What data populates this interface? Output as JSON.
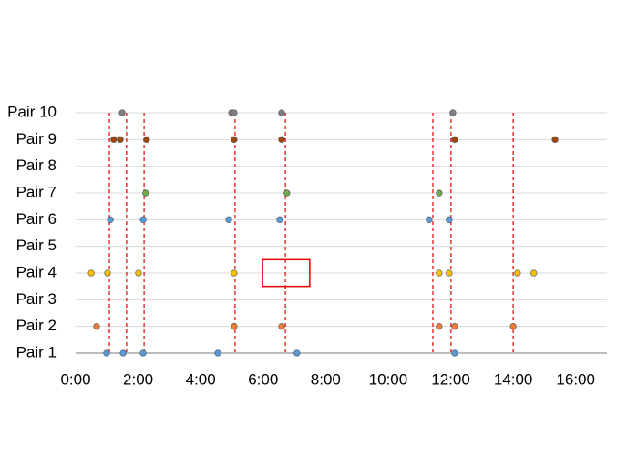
{
  "chart_data": {
    "type": "scatter",
    "xlim": [
      0,
      17
    ],
    "xticks": [
      {
        "value": 0,
        "label": "0:00"
      },
      {
        "value": 2,
        "label": "2:00"
      },
      {
        "value": 4,
        "label": "4:00"
      },
      {
        "value": 6,
        "label": "6:00"
      },
      {
        "value": 8,
        "label": "8:00"
      },
      {
        "value": 10,
        "label": "10:00"
      },
      {
        "value": 12,
        "label": "12:00"
      },
      {
        "value": 14,
        "label": "14:00"
      },
      {
        "value": 16,
        "label": "16:00"
      }
    ],
    "grid": true,
    "series": [
      {
        "name": "Pair 1",
        "color": "#5b9bd5",
        "x": [
          0.99,
          1.52,
          2.16,
          4.55,
          7.08,
          12.13
        ]
      },
      {
        "name": "Pair 2",
        "color": "#ed7d31",
        "x": [
          0.67,
          5.07,
          6.59,
          11.63,
          12.13,
          14.0
        ]
      },
      {
        "name": "Pair 3",
        "color": "#a5a5a5",
        "x": []
      },
      {
        "name": "Pair 4",
        "color": "#ffc000",
        "x": [
          0.5,
          1.02,
          2.01,
          5.07,
          11.63,
          11.95,
          14.14,
          14.66
        ]
      },
      {
        "name": "Pair 5",
        "color": "#4472c4",
        "x": []
      },
      {
        "name": "Pair 6",
        "color": "#5b9bd5",
        "x": [
          1.11,
          2.16,
          4.9,
          6.53,
          11.31,
          11.95
        ]
      },
      {
        "name": "Pair 7",
        "color": "#70ad47",
        "x": [
          2.24,
          6.76,
          11.63
        ]
      },
      {
        "name": "Pair 8",
        "color": "#264478",
        "x": []
      },
      {
        "name": "Pair 9",
        "color": "#9e480e",
        "x": [
          1.22,
          1.43,
          2.27,
          5.07,
          6.59,
          12.13,
          15.34
        ]
      },
      {
        "name": "Pair 10",
        "color": "#7f7f7f",
        "x": [
          1.49,
          4.99,
          5.07,
          6.59,
          12.07
        ]
      }
    ],
    "vlines": {
      "color": "#e00000",
      "x": [
        1.08,
        1.63,
        2.19,
        5.1,
        6.71,
        11.43,
        12.01,
        14.0
      ]
    },
    "highlight": {
      "color": "#e00000",
      "x": [
        5.98,
        7.49
      ],
      "y": [
        3.5,
        4.5
      ]
    }
  }
}
